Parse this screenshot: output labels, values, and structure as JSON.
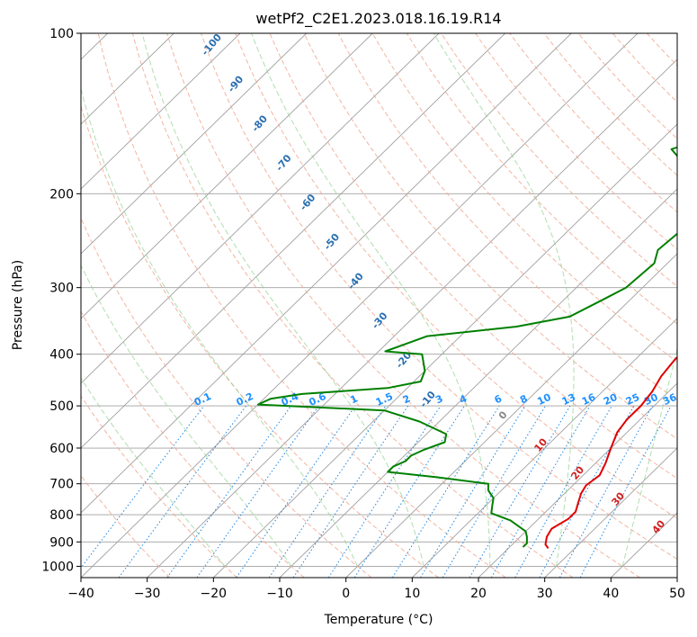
{
  "chart_data": {
    "type": "line",
    "title": "wetPf2_C2E1.2023.018.16.19.R14",
    "xlabel": "Temperature (°C)",
    "ylabel": "Pressure (hPa)",
    "xlim": [
      -40,
      50
    ],
    "ylim": [
      1050,
      100
    ],
    "yscale": "log",
    "x_ticks": [
      -40,
      -30,
      -20,
      -10,
      0,
      10,
      20,
      30,
      40,
      50
    ],
    "x_tick_labels": [
      "−40",
      "−30",
      "−20",
      "−10",
      "0",
      "10",
      "20",
      "30",
      "40",
      "50"
    ],
    "y_ticks": [
      100,
      200,
      300,
      400,
      500,
      600,
      700,
      800,
      900,
      1000
    ],
    "y_tick_labels": [
      "100",
      "200",
      "300",
      "400",
      "500",
      "600",
      "700",
      "800",
      "900",
      "1000"
    ],
    "grid": true,
    "series": [
      {
        "name": "Temperature",
        "color": "#e00000",
        "points": [
          [
            26,
            925
          ],
          [
            25,
            910
          ],
          [
            24,
            880
          ],
          [
            23.5,
            850
          ],
          [
            24.5,
            815
          ],
          [
            24.5,
            790
          ],
          [
            23.5,
            760
          ],
          [
            22.5,
            730
          ],
          [
            22,
            705
          ],
          [
            22.5,
            675
          ],
          [
            21.5,
            640
          ],
          [
            20,
            600
          ],
          [
            18.5,
            560
          ],
          [
            18,
            530
          ],
          [
            18,
            500
          ],
          [
            17.5,
            470
          ],
          [
            16.5,
            440
          ],
          [
            16,
            410
          ],
          [
            16,
            380
          ],
          [
            14.5,
            355
          ],
          [
            12.5,
            330
          ],
          [
            10,
            290
          ],
          [
            8,
            255
          ],
          [
            5.5,
            220
          ],
          [
            2,
            200
          ],
          [
            1.5,
            185
          ],
          [
            2,
            170
          ],
          [
            1,
            160
          ],
          [
            -0.5,
            145
          ],
          [
            -1,
            130
          ],
          [
            0,
            118
          ],
          [
            1,
            108
          ],
          [
            2,
            100
          ]
        ]
      },
      {
        "name": "Dewpoint",
        "color": "#008000",
        "points": [
          [
            22,
            920
          ],
          [
            22,
            905
          ],
          [
            21,
            880
          ],
          [
            20,
            860
          ],
          [
            16,
            820
          ],
          [
            12,
            795
          ],
          [
            11,
            770
          ],
          [
            10,
            745
          ],
          [
            8,
            720
          ],
          [
            7,
            700
          ],
          [
            -2,
            680
          ],
          [
            -10,
            665
          ],
          [
            -10,
            650
          ],
          [
            -9,
            635
          ],
          [
            -9,
            620
          ],
          [
            -8,
            605
          ],
          [
            -6,
            585
          ],
          [
            -7,
            565
          ],
          [
            -13,
            535
          ],
          [
            -20,
            510
          ],
          [
            -40,
            497
          ],
          [
            -39,
            485
          ],
          [
            -35,
            475
          ],
          [
            -23,
            463
          ],
          [
            -19,
            450
          ],
          [
            -20,
            430
          ],
          [
            -23,
            400
          ],
          [
            -29,
            395
          ],
          [
            -25,
            370
          ],
          [
            -13,
            355
          ],
          [
            -6.5,
            340
          ],
          [
            -4,
            315
          ],
          [
            -2.5,
            300
          ],
          [
            -2,
            270
          ],
          [
            -3.5,
            255
          ],
          [
            -3,
            235
          ],
          [
            -4.5,
            215
          ],
          [
            -7.5,
            195
          ],
          [
            -12,
            178
          ],
          [
            -17,
            165
          ],
          [
            -10,
            150
          ],
          [
            -3.5,
            140
          ],
          [
            -1.5,
            127
          ],
          [
            -1,
            117
          ],
          [
            2,
            108
          ],
          [
            5,
            100
          ]
        ]
      }
    ],
    "dry_adiabat_labels": [
      "-100",
      "-90",
      "-80",
      "-70",
      "-60",
      "-50",
      "-40",
      "-30",
      "-20",
      "-10",
      "0",
      "10",
      "20",
      "30",
      "40"
    ],
    "mixing_ratio_labels": [
      "0.1",
      "0.2",
      "0.4",
      "0.6",
      "1",
      "1.5",
      "2",
      "3",
      "4",
      "6",
      "8",
      "10",
      "13",
      "16",
      "20",
      "25",
      "30",
      "36"
    ],
    "colors": {
      "isotherm": "#a0a0a0",
      "dry_adiabat_warm": "#f0a890",
      "dry_adiabat_cold_label": "#2a6fb0",
      "warm_label": "#d02020",
      "zero_label": "#888888",
      "moist_adiabat": "#8fd08f",
      "mixing_ratio": "#1e88e5",
      "mixing_label": "#1e90ff",
      "tan_curve": "#d8b894"
    }
  }
}
